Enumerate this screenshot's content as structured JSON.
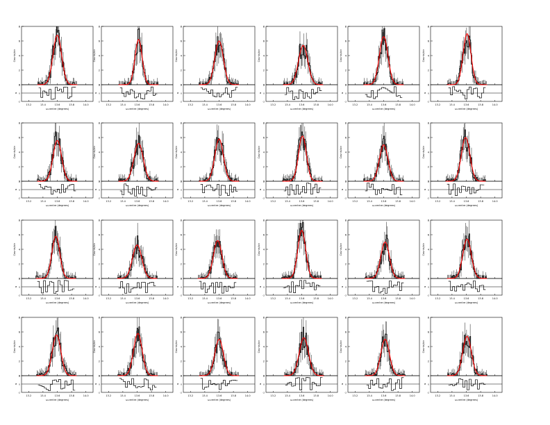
{
  "figure": {
    "rows": 4,
    "cols": 6,
    "panel_count": 24,
    "colors": {
      "data": "#000000",
      "model": "#ff0000",
      "axis": "#000000",
      "background": "#ffffff"
    }
  },
  "chart_data": {
    "type": "line",
    "layout": "4x6 grid of spectral-line fit panels, each with a residual strip below",
    "series": [
      {
        "name": "",
        "style": "black step histogram with vertical error bars"
      },
      {
        "name": "",
        "style": "red gaussian model curve"
      }
    ],
    "main_axis": {
      "ylabel": "Counts/bin",
      "ylim": [
        0,
        8
      ],
      "yticks": [
        "0",
        "2",
        "4",
        "6",
        "8"
      ]
    },
    "residual_axis": {
      "ylabel": "σ",
      "ylim": [
        -2,
        2
      ],
      "yticks": [
        "-2",
        "0",
        "2"
      ]
    },
    "x_axis": {
      "xlabel": "ω-centre (degrees)",
      "xticks": [
        "13.2",
        "13.4",
        "13.6",
        "13.8",
        "14.0"
      ]
    },
    "peak_heights": [
      6.8,
      6.2,
      6.0,
      5.4,
      6.6,
      7.0,
      5.6,
      5.2,
      5.8,
      6.2,
      5.0,
      6.0,
      5.8,
      4.6,
      5.2,
      6.6,
      5.0,
      5.4,
      5.6,
      5.8,
      5.0,
      5.2,
      5.0,
      5.4
    ],
    "peak_centres": [
      13.6,
      13.62,
      13.6,
      13.62,
      13.6,
      13.61,
      13.6,
      13.62,
      13.6,
      13.61,
      13.6,
      13.59,
      13.58,
      13.6,
      13.58,
      13.6,
      13.62,
      13.61,
      13.59,
      13.61,
      13.6,
      13.63,
      13.62,
      13.61
    ],
    "peak_widths": [
      0.06,
      0.05,
      0.06,
      0.065,
      0.06,
      0.055,
      0.06,
      0.065,
      0.06,
      0.055,
      0.06,
      0.06,
      0.055,
      0.065,
      0.06,
      0.055,
      0.06,
      0.06,
      0.06,
      0.06,
      0.06,
      0.065,
      0.06,
      0.06
    ],
    "residual_seeds": [
      3,
      7,
      11,
      13,
      17,
      19,
      23,
      29,
      31,
      37,
      41,
      43,
      47,
      53,
      59,
      61,
      67,
      71,
      73,
      79,
      83,
      89,
      97,
      101
    ],
    "xlim": [
      13.1,
      14.1
    ],
    "grid": false,
    "legend": "none"
  }
}
